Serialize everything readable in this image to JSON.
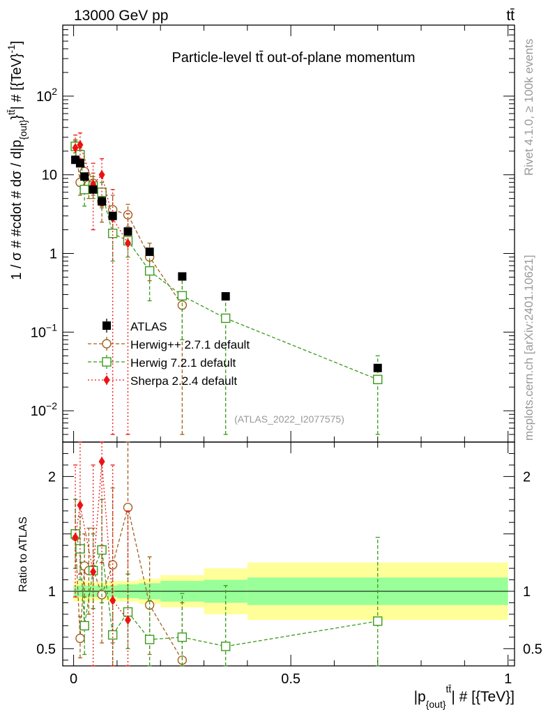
{
  "header": {
    "left": "13000 GeV pp",
    "right": "tt̄"
  },
  "side_texts": {
    "rivet": "Rivet 4.1.0, ≥ 100k events",
    "mcplots": "mcplots.cern.ch [arXiv:2401.10621]"
  },
  "colors": {
    "atlas": "#000000",
    "herwigpp": "#a0601c",
    "herwig7": "#3a9a1a",
    "sherpa": "#ee1111",
    "band_inner": "#99ff99",
    "band_outer": "#ffff99"
  },
  "chart_data": {
    "type": "scatter",
    "title": "Particle-level tt̄ out-of-plane momentum",
    "watermark": "(ATLAS_2022_I2077575)",
    "xlabel": "|p_{out}^{tt̄}| # [{TeV}]",
    "ylabel": "1 / σ # #cdot # dσ / d|p_{out}^{tt̄}| # [{TeV}^{-1}]",
    "ratio_ylabel": "Ratio to ATLAS",
    "xlim": [
      -0.025,
      1.015
    ],
    "ylim": [
      0.004,
      800
    ],
    "ratio_ylim": [
      0.35,
      2.3
    ],
    "x_ticks": [
      {
        "v": 0,
        "label": "0"
      },
      {
        "v": 0.5,
        "label": "0.5"
      },
      {
        "v": 1,
        "label": "1"
      }
    ],
    "y_ticks": [
      {
        "v": 0.01,
        "label": "10^-2"
      },
      {
        "v": 0.1,
        "label": "10^-1"
      },
      {
        "v": 1,
        "label": "1"
      },
      {
        "v": 10,
        "label": "10"
      },
      {
        "v": 100,
        "label": "10^2"
      }
    ],
    "ratio_ticks": [
      {
        "v": 0.5,
        "label": "0.5"
      },
      {
        "v": 1,
        "label": "1"
      },
      {
        "v": 2,
        "label": "2"
      }
    ],
    "bins": [
      {
        "lo": 0.0,
        "hi": 0.01,
        "inner": 0.05,
        "outer": 0.09
      },
      {
        "lo": 0.01,
        "hi": 0.02,
        "inner": 0.05,
        "outer": 0.09
      },
      {
        "lo": 0.02,
        "hi": 0.03,
        "inner": 0.05,
        "outer": 0.09
      },
      {
        "lo": 0.03,
        "hi": 0.04,
        "inner": 0.05,
        "outer": 0.09
      },
      {
        "lo": 0.04,
        "hi": 0.05,
        "inner": 0.05,
        "outer": 0.08
      },
      {
        "lo": 0.05,
        "hi": 0.06,
        "inner": 0.05,
        "outer": 0.08
      },
      {
        "lo": 0.06,
        "hi": 0.08,
        "inner": 0.05,
        "outer": 0.08
      },
      {
        "lo": 0.08,
        "hi": 0.1,
        "inner": 0.05,
        "outer": 0.09
      },
      {
        "lo": 0.1,
        "hi": 0.15,
        "inner": 0.06,
        "outer": 0.09
      },
      {
        "lo": 0.15,
        "hi": 0.2,
        "inner": 0.07,
        "outer": 0.11
      },
      {
        "lo": 0.2,
        "hi": 0.3,
        "inner": 0.09,
        "outer": 0.14
      },
      {
        "lo": 0.3,
        "hi": 0.4,
        "inner": 0.1,
        "outer": 0.2
      },
      {
        "lo": 0.4,
        "hi": 1.0,
        "inner": 0.12,
        "outer": 0.25
      }
    ],
    "series": [
      {
        "name": "ATLAS",
        "style": "data",
        "points": [
          {
            "x": 0.004,
            "y": 15.5,
            "ylo": 14.8,
            "yhi": 16.2
          },
          {
            "x": 0.015,
            "y": 14,
            "ylo": 13.3,
            "yhi": 14.7
          },
          {
            "x": 0.025,
            "y": 9.5,
            "ylo": 9.0,
            "yhi": 10.0
          },
          {
            "x": 0.045,
            "y": 6.5,
            "ylo": 6.1,
            "yhi": 6.9
          },
          {
            "x": 0.065,
            "y": 4.6,
            "ylo": 4.3,
            "yhi": 4.9
          },
          {
            "x": 0.09,
            "y": 3.0,
            "ylo": 2.8,
            "yhi": 3.2
          },
          {
            "x": 0.125,
            "y": 1.9,
            "ylo": 1.78,
            "yhi": 2.02
          },
          {
            "x": 0.175,
            "y": 1.05,
            "ylo": 0.98,
            "yhi": 1.12
          },
          {
            "x": 0.25,
            "y": 0.51,
            "ylo": 0.47,
            "yhi": 0.55
          },
          {
            "x": 0.35,
            "y": 0.285,
            "ylo": 0.265,
            "yhi": 0.305
          },
          {
            "x": 0.7,
            "y": 0.035,
            "ylo": 0.031,
            "yhi": 0.039
          }
        ],
        "ratio": []
      },
      {
        "name": "Herwig++ 2.7.1 default",
        "style": "circle",
        "points": [
          {
            "x": 0.004,
            "y": 23,
            "ylo": 19,
            "yhi": 28
          },
          {
            "x": 0.015,
            "y": 8,
            "ylo": 5.5,
            "yhi": 11
          },
          {
            "x": 0.025,
            "y": 11,
            "ylo": 8.5,
            "yhi": 14
          },
          {
            "x": 0.035,
            "y": 7.5,
            "ylo": 5,
            "yhi": 10
          },
          {
            "x": 0.045,
            "y": 7.8,
            "ylo": 5.5,
            "yhi": 10.5
          },
          {
            "x": 0.065,
            "y": 4.6,
            "ylo": 2.5,
            "yhi": 6.5
          },
          {
            "x": 0.09,
            "y": 3.6,
            "ylo": 1.8,
            "yhi": 5.5
          },
          {
            "x": 0.125,
            "y": 3.1,
            "ylo": 2.2,
            "yhi": 4.2
          },
          {
            "x": 0.175,
            "y": 0.9,
            "ylo": 0.45,
            "yhi": 1.35
          },
          {
            "x": 0.25,
            "y": 0.22,
            "ylo": 0.005,
            "yhi": 0.5
          }
        ],
        "ratio": [
          {
            "x": 0.004,
            "y": 1.48,
            "ylo": 1.2,
            "yhi": 1.8
          },
          {
            "x": 0.015,
            "y": 0.59,
            "ylo": 0.42,
            "yhi": 0.78
          },
          {
            "x": 0.025,
            "y": 1.22,
            "ylo": 0.95,
            "yhi": 1.5
          },
          {
            "x": 0.035,
            "y": 1.18,
            "ylo": 0.8,
            "yhi": 1.55
          },
          {
            "x": 0.045,
            "y": 1.19,
            "ylo": 0.85,
            "yhi": 1.55
          },
          {
            "x": 0.065,
            "y": 0.97,
            "ylo": 0.55,
            "yhi": 1.4
          },
          {
            "x": 0.09,
            "y": 1.23,
            "ylo": 0.55,
            "yhi": 1.9
          },
          {
            "x": 0.125,
            "y": 1.73,
            "ylo": 1.15,
            "yhi": 2.3
          },
          {
            "x": 0.175,
            "y": 0.88,
            "ylo": 0.45,
            "yhi": 1.3
          },
          {
            "x": 0.25,
            "y": 0.4,
            "ylo": 0.01,
            "yhi": 0.9
          }
        ]
      },
      {
        "name": "Herwig 7.2.1 default",
        "style": "square",
        "points": [
          {
            "x": 0.004,
            "y": 23,
            "ylo": 19,
            "yhi": 27
          },
          {
            "x": 0.015,
            "y": 18,
            "ylo": 14,
            "yhi": 22
          },
          {
            "x": 0.025,
            "y": 6.5,
            "ylo": 4,
            "yhi": 9
          },
          {
            "x": 0.045,
            "y": 7.2,
            "ylo": 5,
            "yhi": 9.5
          },
          {
            "x": 0.065,
            "y": 6.0,
            "ylo": 3.8,
            "yhi": 8
          },
          {
            "x": 0.09,
            "y": 1.8,
            "ylo": 0.8,
            "yhi": 2.9
          },
          {
            "x": 0.125,
            "y": 1.45,
            "ylo": 0.9,
            "yhi": 2.0
          },
          {
            "x": 0.175,
            "y": 0.6,
            "ylo": 0.25,
            "yhi": 0.95
          },
          {
            "x": 0.25,
            "y": 0.29,
            "ylo": 0.08,
            "yhi": 0.5
          },
          {
            "x": 0.35,
            "y": 0.15,
            "ylo": 0.005,
            "yhi": 0.3
          },
          {
            "x": 0.7,
            "y": 0.025,
            "ylo": 0.005,
            "yhi": 0.05
          }
        ],
        "ratio": [
          {
            "x": 0.004,
            "y": 1.5,
            "ylo": 1.2,
            "yhi": 1.8
          },
          {
            "x": 0.015,
            "y": 1.37,
            "ylo": 1.1,
            "yhi": 1.65
          },
          {
            "x": 0.025,
            "y": 0.7,
            "ylo": 0.45,
            "yhi": 0.95
          },
          {
            "x": 0.045,
            "y": 1.18,
            "ylo": 0.85,
            "yhi": 1.5
          },
          {
            "x": 0.065,
            "y": 1.36,
            "ylo": 0.9,
            "yhi": 1.8
          },
          {
            "x": 0.09,
            "y": 0.62,
            "ylo": 0.25,
            "yhi": 1.0
          },
          {
            "x": 0.125,
            "y": 0.82,
            "ylo": 0.5,
            "yhi": 1.15
          },
          {
            "x": 0.175,
            "y": 0.58,
            "ylo": 0.25,
            "yhi": 0.92
          },
          {
            "x": 0.25,
            "y": 0.6,
            "ylo": 0.2,
            "yhi": 0.98
          },
          {
            "x": 0.35,
            "y": 0.52,
            "ylo": 0.02,
            "yhi": 1.05
          },
          {
            "x": 0.7,
            "y": 0.74,
            "ylo": 0.02,
            "yhi": 1.47
          }
        ]
      },
      {
        "name": "Sherpa 2.2.4 default",
        "style": "diamond",
        "points": [
          {
            "x": 0.004,
            "y": 22,
            "ylo": 14,
            "yhi": 32
          },
          {
            "x": 0.015,
            "y": 24,
            "ylo": 16,
            "yhi": 34
          },
          {
            "x": 0.045,
            "y": 7.6,
            "ylo": 2,
            "yhi": 14
          },
          {
            "x": 0.065,
            "y": 10,
            "ylo": 4,
            "yhi": 16
          },
          {
            "x": 0.09,
            "y": 2.8,
            "ylo": 0.005,
            "yhi": 6.5
          },
          {
            "x": 0.125,
            "y": 1.35,
            "ylo": 0.005,
            "yhi": 3.2
          }
        ],
        "ratio": [
          {
            "x": 0.004,
            "y": 1.47,
            "ylo": 0.95,
            "yhi": 2.1
          },
          {
            "x": 0.015,
            "y": 1.75,
            "ylo": 1.15,
            "yhi": 2.3
          },
          {
            "x": 0.045,
            "y": 1.17,
            "ylo": 0.3,
            "yhi": 2.1
          },
          {
            "x": 0.065,
            "y": 2.13,
            "ylo": 1.25,
            "yhi": 2.3
          },
          {
            "x": 0.09,
            "y": 0.92,
            "ylo": 0.02,
            "yhi": 2.1
          },
          {
            "x": 0.125,
            "y": 0.75,
            "ylo": 0.02,
            "yhi": 1.7
          }
        ]
      }
    ]
  }
}
